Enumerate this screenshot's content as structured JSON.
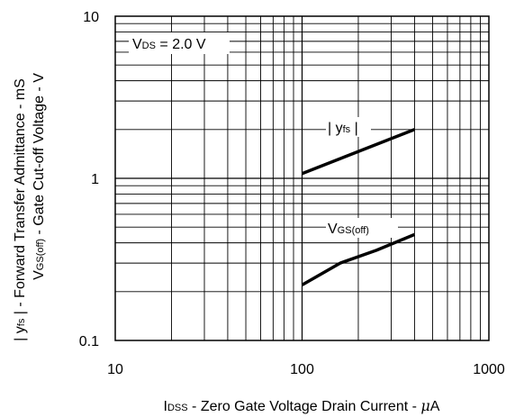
{
  "chart_data": {
    "type": "line",
    "x_scale": "log",
    "y_scale": "log",
    "xlim": [
      10,
      1000
    ],
    "ylim": [
      0.1,
      10
    ],
    "grid": true,
    "x_ticks": [
      "10",
      "100",
      "1000"
    ],
    "y_ticks": [
      "0.1",
      "1",
      "10"
    ],
    "x_tick_values": [
      10,
      100,
      1000
    ],
    "y_tick_values": [
      0.1,
      1,
      10
    ],
    "xlabel": {
      "main": "I",
      "sub": "DSS",
      "rest": " - Zero Gate Voltage Drain Current - ",
      "unit_prefix": "μ",
      "unit": "A"
    },
    "ylabel_line1": {
      "part1": "| y",
      "sub": "fs",
      "part2": " | - Forward Transfer Admittance - mS"
    },
    "ylabel_line2": {
      "part1": "V",
      "sub": "GS(off)",
      "part2": " - Gate Cut-off Voltage - V"
    },
    "condition_label": {
      "main": "V",
      "sub": "DS",
      "rest": " = 2.0 V"
    },
    "series": [
      {
        "name": "| yfs |",
        "label_main": "| y",
        "label_sub": "fs",
        "label_end": " |",
        "x": [
          100,
          400
        ],
        "y": [
          1.07,
          2.0
        ]
      },
      {
        "name": "VGS(off)",
        "label_main": "V",
        "label_sub": "GS(off)",
        "label_end": "",
        "x": [
          100,
          160,
          250,
          400
        ],
        "y": [
          0.22,
          0.3,
          0.36,
          0.45
        ]
      }
    ],
    "line_color": "#000000",
    "grid_color": "#000000"
  }
}
